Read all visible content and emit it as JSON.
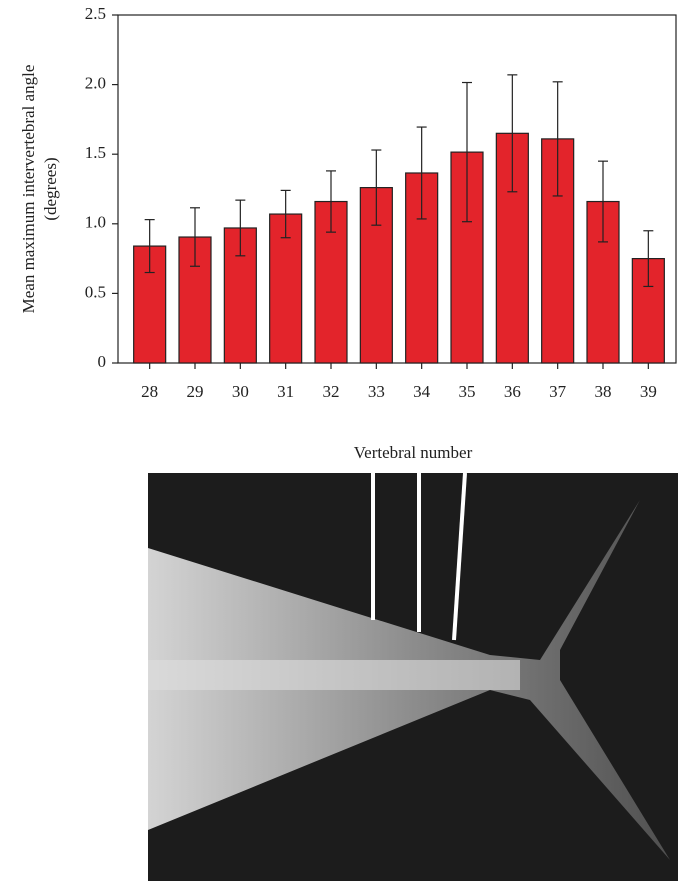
{
  "chart_data": {
    "type": "bar",
    "ylabel": [
      "Mean maximum intervertebral angle",
      "(degrees)"
    ],
    "xlabel": "Vertebral number",
    "categories": [
      "28",
      "29",
      "30",
      "31",
      "32",
      "33",
      "34",
      "35",
      "36",
      "37",
      "38",
      "39"
    ],
    "values": [
      0.84,
      0.905,
      0.97,
      1.07,
      1.16,
      1.26,
      1.365,
      1.515,
      1.65,
      1.61,
      1.16,
      0.75
    ],
    "errors": [
      0.19,
      0.21,
      0.2,
      0.17,
      0.22,
      0.27,
      0.33,
      0.5,
      0.42,
      0.41,
      0.29,
      0.2
    ],
    "color": "#e3242b",
    "ylim": [
      0,
      2.5
    ],
    "yticks": [
      0,
      {
        "value": 0.5,
        "label": "0.5"
      },
      {
        "value": 1.0,
        "label": "1.0"
      },
      {
        "value": 1.5,
        "label": "1.5"
      },
      {
        "value": 2.0,
        "label": "2.0"
      },
      {
        "value": 2.5,
        "label": "2.5"
      }
    ]
  }
}
